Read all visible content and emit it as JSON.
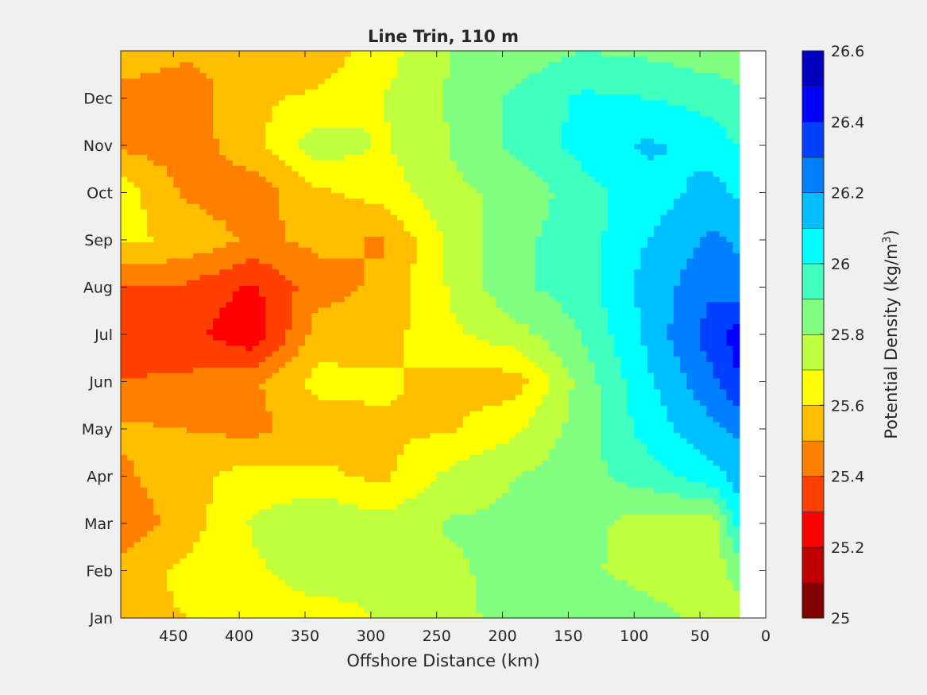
{
  "chart_data": {
    "type": "heatmap",
    "title": "Line Trin, 110 m",
    "xlabel": "Offshore Distance (km)",
    "ylabel": "",
    "x_reversed": true,
    "xlim": [
      490,
      0
    ],
    "x_ticks": [
      450,
      400,
      350,
      300,
      250,
      200,
      150,
      100,
      50,
      0
    ],
    "y_ticks": [
      "Jan",
      "Feb",
      "Mar",
      "Apr",
      "May",
      "Jun",
      "Jul",
      "Aug",
      "Sep",
      "Oct",
      "Nov",
      "Dec"
    ],
    "grid": false,
    "data_extent_km": [
      490,
      20
    ],
    "colorbar": {
      "label": "Potential Density (kg/m",
      "label_sup": "3",
      "label_end": ")",
      "min": 25,
      "max": 26.6,
      "step": 0.1,
      "tick_values": [
        25,
        25.2,
        25.4,
        25.6,
        25.8,
        26,
        26.2,
        26.4,
        26.6
      ],
      "tick_labels": [
        "25",
        "25.2",
        "25.4",
        "25.6",
        "25.8",
        "26",
        "26.2",
        "26.4",
        "26.6"
      ],
      "colors": [
        "#800000",
        "#bf0000",
        "#ff0000",
        "#ff4000",
        "#ff8000",
        "#ffbf00",
        "#ffff00",
        "#bfff40",
        "#80ff80",
        "#40ffbf",
        "#00ffff",
        "#00bfff",
        "#0080ff",
        "#0040ff",
        "#0000ff",
        "#0000bf"
      ]
    },
    "grid_x": [
      490,
      440,
      390,
      340,
      290,
      240,
      190,
      140,
      90,
      40,
      20
    ],
    "grid_y": [
      "Jan",
      "Feb",
      "Mar",
      "Apr",
      "May",
      "Jun",
      "Jul",
      "Aug",
      "Sep",
      "Oct",
      "Nov",
      "Dec",
      "Dec-end"
    ],
    "values": [
      [
        25.56,
        25.6,
        25.64,
        25.65,
        25.71,
        25.75,
        25.86,
        25.9,
        25.84,
        25.76,
        25.74
      ],
      [
        25.54,
        25.63,
        25.68,
        25.76,
        25.72,
        25.78,
        25.84,
        25.82,
        25.76,
        25.73,
        25.86
      ],
      [
        25.43,
        25.55,
        25.71,
        25.8,
        25.74,
        25.81,
        25.82,
        25.84,
        25.75,
        25.75,
        26.05
      ],
      [
        25.48,
        25.56,
        25.65,
        25.62,
        25.58,
        25.73,
        25.8,
        25.86,
        25.95,
        26.06,
        26.15
      ],
      [
        25.52,
        25.5,
        25.47,
        25.55,
        25.58,
        25.59,
        25.68,
        25.85,
        26.04,
        26.18,
        26.22
      ],
      [
        25.4,
        25.42,
        25.48,
        25.63,
        25.62,
        25.56,
        25.55,
        25.84,
        26.08,
        26.28,
        26.4
      ],
      [
        25.36,
        25.33,
        25.22,
        25.55,
        25.56,
        25.68,
        25.76,
        25.9,
        26.12,
        26.36,
        26.45
      ],
      [
        25.4,
        25.38,
        25.28,
        25.46,
        25.52,
        25.71,
        25.88,
        25.95,
        26.14,
        26.28,
        26.24
      ],
      [
        25.62,
        25.58,
        25.48,
        25.52,
        25.49,
        25.72,
        25.88,
        25.95,
        26.1,
        26.22,
        26.18
      ],
      [
        25.66,
        25.48,
        25.44,
        25.58,
        25.64,
        25.78,
        25.82,
        25.96,
        26.05,
        26.14,
        26.08
      ],
      [
        25.48,
        25.45,
        25.56,
        25.76,
        25.69,
        25.8,
        25.93,
        26.03,
        26.12,
        26.06,
        25.99
      ],
      [
        25.46,
        25.44,
        25.58,
        25.62,
        25.7,
        25.81,
        25.92,
        26.02,
        26.0,
        25.96,
        25.92
      ],
      [
        25.56,
        25.52,
        25.51,
        25.53,
        25.66,
        25.8,
        25.84,
        25.9,
        25.88,
        25.84,
        25.85
      ]
    ]
  }
}
